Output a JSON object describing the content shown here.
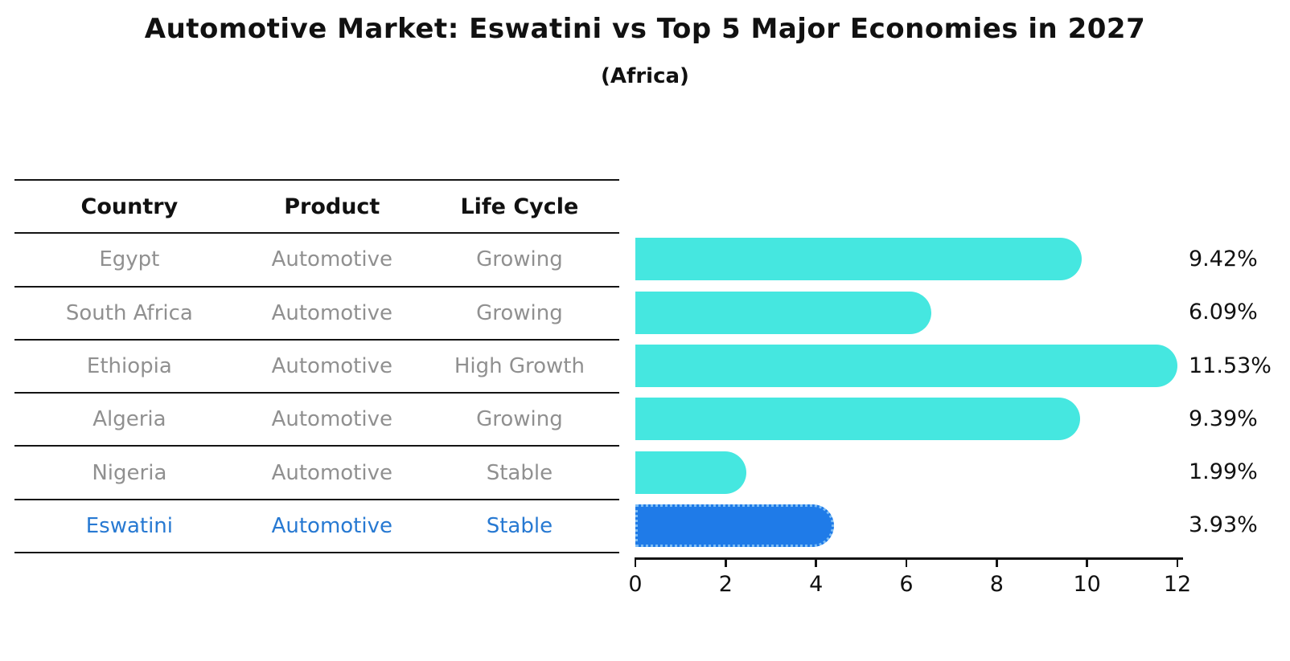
{
  "chart_data": {
    "type": "bar",
    "orientation": "horizontal",
    "title": "Automotive Market: Eswatini vs Top 5 Major Economies in 2027",
    "subtitle": "(Africa)",
    "categories": [
      "Egypt",
      "South Africa",
      "Ethiopia",
      "Algeria",
      "Nigeria",
      "Eswatini"
    ],
    "values": [
      9.42,
      6.09,
      11.53,
      9.39,
      1.99,
      3.93
    ],
    "value_labels": [
      "9.42%",
      "6.09%",
      "11.53%",
      "9.39%",
      "1.99%",
      "3.93%"
    ],
    "xlim": [
      0,
      12
    ],
    "x_ticks": [
      0,
      2,
      4,
      6,
      8,
      10,
      12
    ],
    "highlight_index": 5,
    "grid": false,
    "legend": false,
    "colors": {
      "bar": "#45e7e0",
      "highlight_bar": "#1f7be8",
      "highlight_bar_border": "#7dbdf5",
      "axis": "#141414",
      "value_label_text": "#111111"
    }
  },
  "table": {
    "headers": [
      "Country",
      "Product",
      "Life Cycle"
    ],
    "rows": [
      {
        "country": "Egypt",
        "product": "Automotive",
        "life_cycle": "Growing",
        "highlight": false
      },
      {
        "country": "South Africa",
        "product": "Automotive",
        "life_cycle": "Growing",
        "highlight": false
      },
      {
        "country": "Ethiopia",
        "product": "Automotive",
        "life_cycle": "High Growth",
        "highlight": false
      },
      {
        "country": "Algeria",
        "product": "Automotive",
        "life_cycle": "Growing",
        "highlight": false
      },
      {
        "country": "Nigeria",
        "product": "Automotive",
        "life_cycle": "Stable",
        "highlight": false
      },
      {
        "country": "Eswatini",
        "product": "Automotive",
        "life_cycle": "Stable",
        "highlight": true
      }
    ],
    "text_color": "#909090",
    "highlight_text_color": "#2779d2"
  }
}
